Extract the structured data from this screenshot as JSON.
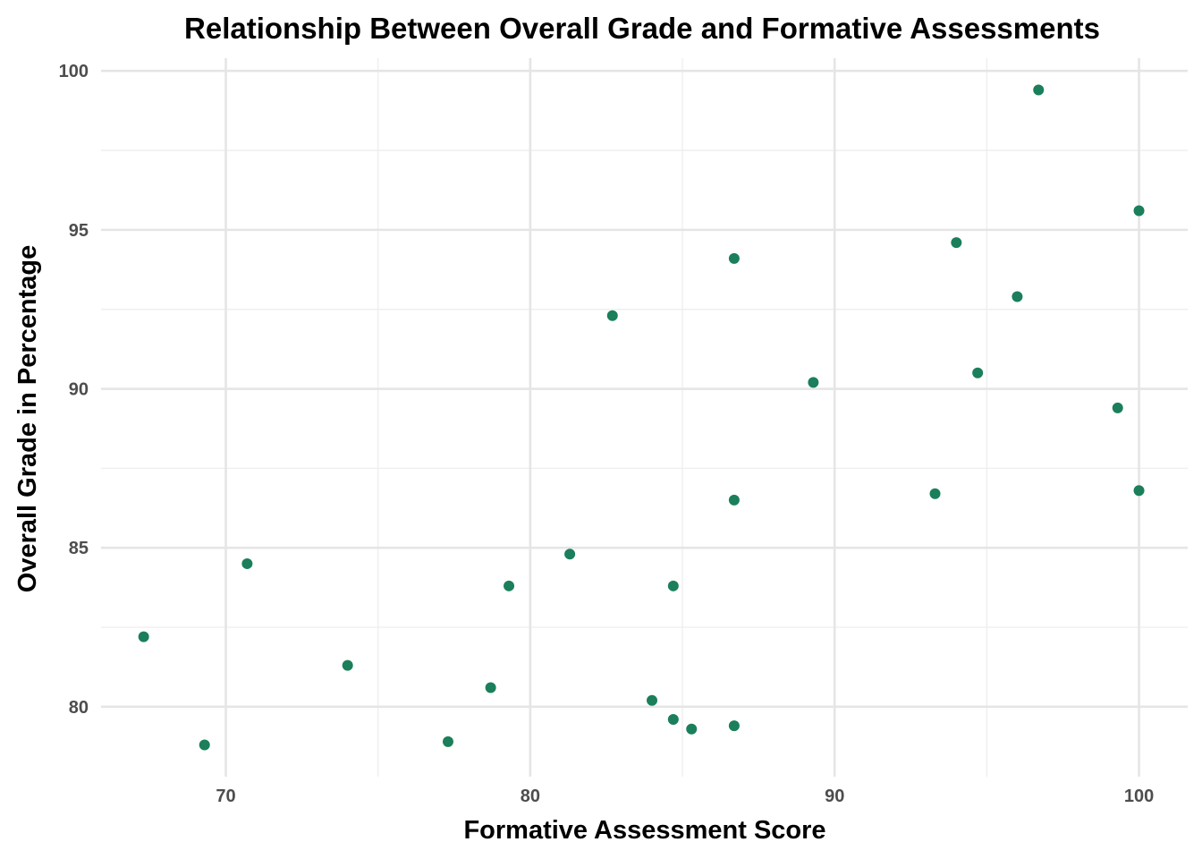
{
  "chart_data": {
    "type": "scatter",
    "title": "Relationship Between Overall Grade and Formative Assessments",
    "xlabel": "Formative Assessment Score",
    "ylabel": "Overall Grade in Percentage",
    "xlim": [
      65.9,
      101.6
    ],
    "ylim": [
      77.8,
      100.4
    ],
    "x_ticks": [
      70,
      80,
      90,
      100
    ],
    "y_ticks": [
      80,
      85,
      90,
      95,
      100
    ],
    "x_tick_labels": [
      "70",
      "80",
      "90",
      "100"
    ],
    "y_tick_labels": [
      "80",
      "85",
      "90",
      "95",
      "100"
    ],
    "grid": true,
    "legend": "none",
    "point_color": "#1a7f5a",
    "points": [
      {
        "x": 67.3,
        "y": 82.2
      },
      {
        "x": 69.3,
        "y": 78.8
      },
      {
        "x": 70.7,
        "y": 84.5
      },
      {
        "x": 74.0,
        "y": 81.3
      },
      {
        "x": 77.3,
        "y": 78.9
      },
      {
        "x": 78.7,
        "y": 80.6
      },
      {
        "x": 79.3,
        "y": 83.8
      },
      {
        "x": 81.3,
        "y": 84.8
      },
      {
        "x": 82.7,
        "y": 92.3
      },
      {
        "x": 84.0,
        "y": 80.2
      },
      {
        "x": 84.7,
        "y": 79.6
      },
      {
        "x": 84.7,
        "y": 83.8
      },
      {
        "x": 85.3,
        "y": 79.3
      },
      {
        "x": 86.7,
        "y": 79.4
      },
      {
        "x": 86.7,
        "y": 86.5
      },
      {
        "x": 86.7,
        "y": 94.1
      },
      {
        "x": 89.3,
        "y": 90.2
      },
      {
        "x": 93.3,
        "y": 86.7
      },
      {
        "x": 94.0,
        "y": 94.6
      },
      {
        "x": 94.7,
        "y": 90.5
      },
      {
        "x": 96.0,
        "y": 92.9
      },
      {
        "x": 96.7,
        "y": 99.4
      },
      {
        "x": 99.3,
        "y": 89.4
      },
      {
        "x": 100.0,
        "y": 95.6
      },
      {
        "x": 100.0,
        "y": 86.8
      }
    ]
  }
}
